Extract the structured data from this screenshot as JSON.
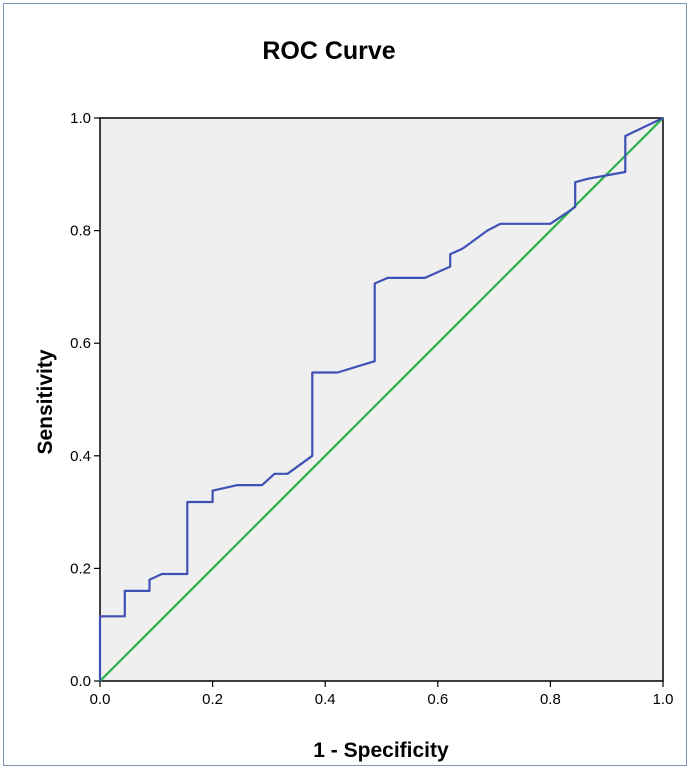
{
  "chart_data": {
    "type": "line",
    "title": "ROC Curve",
    "xlabel": "1 - Specificity",
    "ylabel": "Sensitivity",
    "xlim": [
      0,
      1
    ],
    "ylim": [
      0,
      1
    ],
    "x_ticks": [
      "0.0",
      "0.2",
      "0.4",
      "0.6",
      "0.8",
      "1.0"
    ],
    "y_ticks": [
      "0.0",
      "0.2",
      "0.4",
      "0.6",
      "0.8",
      "1.0"
    ],
    "grid": false,
    "plot_background": "#efefef",
    "series": [
      {
        "color": "#3f51b5",
        "x": [
          0,
          0,
          0.044,
          0.044,
          0.088,
          0.088,
          0.11,
          0.155,
          0.155,
          0.2,
          0.2,
          0.244,
          0.288,
          0.31,
          0.333,
          0.377,
          0.377,
          0.422,
          0.488,
          0.488,
          0.511,
          0.577,
          0.622,
          0.622,
          0.644,
          0.688,
          0.711,
          0.8,
          0.844,
          0.844,
          0.866,
          0.933,
          0.933,
          1.0
        ],
        "y": [
          0,
          0.115,
          0.115,
          0.16,
          0.16,
          0.18,
          0.19,
          0.19,
          0.318,
          0.318,
          0.338,
          0.348,
          0.348,
          0.368,
          0.368,
          0.4,
          0.548,
          0.548,
          0.568,
          0.706,
          0.716,
          0.716,
          0.736,
          0.758,
          0.768,
          0.8,
          0.812,
          0.812,
          0.842,
          0.886,
          0.892,
          0.904,
          0.968,
          1.0
        ]
      },
      {
        "color": "#27b24a",
        "x": [
          0,
          1
        ],
        "y": [
          0,
          1
        ]
      }
    ]
  }
}
